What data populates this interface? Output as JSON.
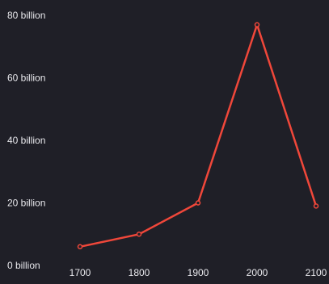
{
  "chart_data": {
    "type": "line",
    "title": "",
    "xlabel": "",
    "ylabel": "",
    "x": [
      1700,
      1800,
      1900,
      2000,
      2100
    ],
    "x_tick_labels": [
      "1700",
      "1800",
      "1900",
      "2000",
      "2100"
    ],
    "series": [
      {
        "name": "",
        "values": [
          6,
          10,
          20,
          77,
          19
        ],
        "color": "#f0473a"
      }
    ],
    "ylim": [
      0,
      80
    ],
    "y_ticks": [
      0,
      20,
      40,
      60,
      80
    ],
    "y_tick_labels": [
      "0 billion",
      "20 billion",
      "40 billion",
      "60 billion",
      "80 billion"
    ],
    "grid": false,
    "legend": "none",
    "background_color": "#1f1f27",
    "text_color": "#e8e8ec"
  }
}
